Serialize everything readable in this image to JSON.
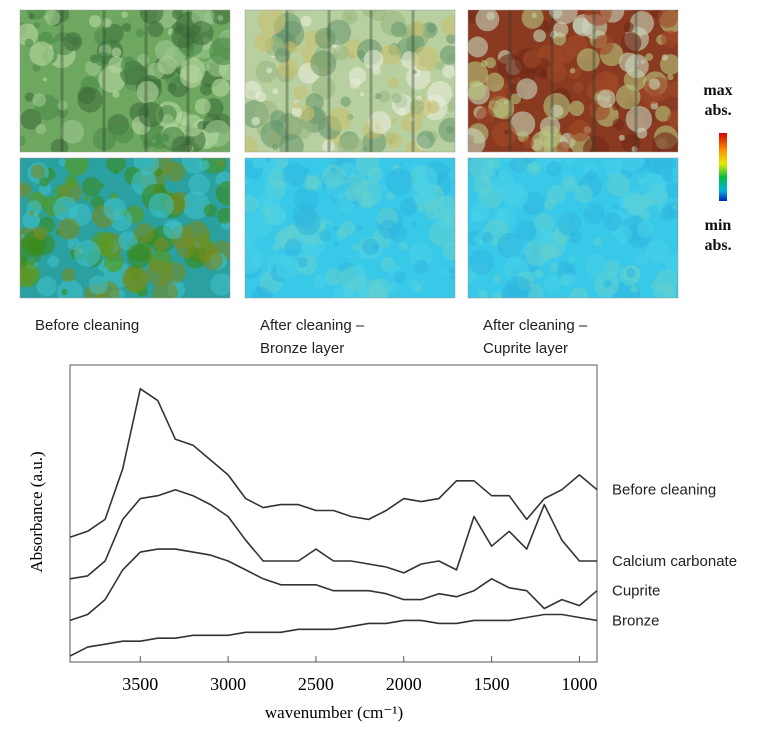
{
  "panels": [
    {
      "caption": [
        "Before cleaning"
      ]
    },
    {
      "caption": [
        "After cleaning –",
        "Bronze layer"
      ]
    },
    {
      "caption": [
        "After cleaning –",
        "Cuprite layer"
      ]
    }
  ],
  "colorbar": {
    "max_label": [
      "max",
      "abs."
    ],
    "min_label": [
      "min",
      "abs."
    ]
  },
  "chart_data": {
    "type": "line",
    "x_label": "wavenumber (cm⁻¹)",
    "y_label": "Absorbance (a.u.)",
    "x": [
      3900,
      3800,
      3700,
      3600,
      3500,
      3400,
      3300,
      3200,
      3100,
      3000,
      2900,
      2800,
      2700,
      2600,
      2500,
      2400,
      2300,
      2200,
      2100,
      2000,
      1900,
      1800,
      1700,
      1600,
      1500,
      1400,
      1300,
      1200,
      1100,
      1000,
      900
    ],
    "xlim": [
      3900,
      900
    ],
    "xticks": [
      3500,
      3000,
      2500,
      2000,
      1500,
      1000
    ],
    "ylim": [
      0,
      1
    ],
    "series": [
      {
        "name": "Before cleaning",
        "color": "#333333",
        "values": [
          0.42,
          0.44,
          0.48,
          0.65,
          0.92,
          0.88,
          0.75,
          0.73,
          0.68,
          0.63,
          0.55,
          0.52,
          0.53,
          0.53,
          0.51,
          0.51,
          0.49,
          0.48,
          0.51,
          0.55,
          0.54,
          0.55,
          0.61,
          0.61,
          0.56,
          0.56,
          0.48,
          0.55,
          0.58,
          0.63,
          0.58
        ]
      },
      {
        "name": "Calcium carbonate",
        "color": "#333333",
        "values": [
          0.28,
          0.29,
          0.34,
          0.48,
          0.55,
          0.56,
          0.58,
          0.56,
          0.53,
          0.49,
          0.41,
          0.34,
          0.34,
          0.34,
          0.38,
          0.34,
          0.34,
          0.33,
          0.32,
          0.3,
          0.33,
          0.34,
          0.31,
          0.49,
          0.39,
          0.44,
          0.38,
          0.53,
          0.41,
          0.34,
          0.34
        ]
      },
      {
        "name": "Cuprite",
        "color": "#333333",
        "values": [
          0.14,
          0.16,
          0.21,
          0.31,
          0.37,
          0.38,
          0.38,
          0.37,
          0.36,
          0.34,
          0.31,
          0.28,
          0.26,
          0.26,
          0.26,
          0.24,
          0.24,
          0.24,
          0.23,
          0.21,
          0.21,
          0.23,
          0.22,
          0.24,
          0.28,
          0.25,
          0.24,
          0.18,
          0.21,
          0.19,
          0.24
        ]
      },
      {
        "name": "Bronze",
        "color": "#333333",
        "values": [
          0.02,
          0.05,
          0.06,
          0.07,
          0.07,
          0.08,
          0.08,
          0.09,
          0.09,
          0.09,
          0.1,
          0.1,
          0.1,
          0.11,
          0.11,
          0.11,
          0.12,
          0.13,
          0.13,
          0.14,
          0.14,
          0.13,
          0.13,
          0.14,
          0.14,
          0.14,
          0.15,
          0.16,
          0.16,
          0.15,
          0.14
        ]
      }
    ]
  }
}
